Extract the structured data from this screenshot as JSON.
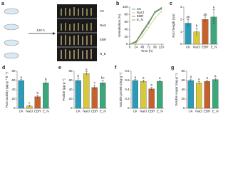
{
  "chart_data": [
    {
      "type": "diagram",
      "panel": "a",
      "arrow_label": "120 h",
      "labels": [
        "CK",
        "Nacl",
        "EBR",
        "N_E"
      ]
    },
    {
      "type": "line",
      "panel": "b",
      "x_label": "Time (h)",
      "y_label": "Germination (%)",
      "x": [
        0,
        24,
        48,
        72,
        96,
        120
      ],
      "xlim": [
        0,
        130
      ],
      "xticks": [
        0,
        24,
        48,
        72,
        96,
        120
      ],
      "ylim": [
        0,
        100
      ],
      "yticks": [
        0,
        20,
        40,
        60,
        80,
        100
      ],
      "legend": "top-left",
      "series": [
        {
          "name": "CK",
          "color": "#2b9cb8",
          "values": [
            0,
            5,
            30,
            55,
            85,
            95
          ]
        },
        {
          "name": "NaCl",
          "color": "#d8c83c",
          "values": [
            0,
            3,
            20,
            45,
            70,
            88
          ]
        },
        {
          "name": "EBR",
          "color": "#c4612e",
          "values": [
            0,
            8,
            35,
            60,
            88,
            98
          ]
        },
        {
          "name": "E_N",
          "color": "#3ba77b",
          "values": [
            0,
            6,
            32,
            58,
            86,
            97
          ]
        }
      ]
    },
    {
      "type": "bar",
      "panel": "c",
      "y_label": "Root length (cm)",
      "categories": [
        "CK",
        "NaCl",
        "EBR",
        "E_N"
      ],
      "colors": [
        "#2b9cb8",
        "#d8c83c",
        "#c4612e",
        "#3ba77b"
      ],
      "values": [
        1.7,
        1.0,
        2.0,
        2.2
      ],
      "errors": [
        0.3,
        0.3,
        0.2,
        0.6
      ],
      "letters": [
        "ab",
        "b",
        "ab",
        "a"
      ],
      "ylim": [
        0,
        3
      ],
      "yticks": [
        0,
        1,
        2,
        3
      ]
    },
    {
      "type": "bar",
      "panel": "d",
      "y_label": "Root activity (µg·g⁻¹·h⁻¹)",
      "categories": [
        "CK",
        "NaCl",
        "EBR",
        "E_N"
      ],
      "colors": [
        "#2b9cb8",
        "#d8c83c",
        "#c4612e",
        "#3ba77b"
      ],
      "values": [
        60,
        5,
        25,
        55
      ],
      "errors": [
        2,
        2,
        3,
        4
      ],
      "letters": [
        "a",
        "c",
        "b",
        "a"
      ],
      "ylim": [
        0,
        80
      ],
      "yticks": [
        0,
        20,
        40,
        60,
        80
      ]
    },
    {
      "type": "bar",
      "panel": "e",
      "y_label": "Proline (µg·g⁻¹)",
      "categories": [
        "CK",
        "NaCl",
        "EBR",
        "E_N"
      ],
      "colors": [
        "#2b9cb8",
        "#d8c83c",
        "#c4612e",
        "#3ba77b"
      ],
      "values": [
        60,
        75,
        45,
        55
      ],
      "errors": [
        5,
        4,
        5,
        6
      ],
      "letters": [
        "b",
        "a",
        "c",
        "bc"
      ],
      "ylim": [
        0,
        80
      ],
      "yticks": [
        0,
        20,
        40,
        60,
        80
      ]
    },
    {
      "type": "bar",
      "panel": "f",
      "y_label": "Soluble protein (mg·g⁻¹)",
      "categories": [
        "CK",
        "NaCl",
        "EBR",
        "E_N"
      ],
      "colors": [
        "#2b9cb8",
        "#d8c83c",
        "#c4612e",
        "#3ba77b"
      ],
      "values": [
        0.6,
        0.58,
        0.42,
        0.58
      ],
      "errors": [
        0.02,
        0.03,
        0.03,
        0.02
      ],
      "letters": [
        "a",
        "a",
        "b",
        "a"
      ],
      "ylim": [
        0,
        0.8
      ],
      "yticks": [
        0,
        0.2,
        0.4,
        0.6,
        0.8
      ]
    },
    {
      "type": "bar",
      "panel": "g",
      "y_label": "Soluble sugar (mg·g⁻¹)",
      "categories": [
        "CK",
        "NaCl",
        "EBR",
        "E_N"
      ],
      "colors": [
        "#2b9cb8",
        "#d8c83c",
        "#c4612e",
        "#3ba77b"
      ],
      "values": [
        60,
        55,
        58,
        62
      ],
      "errors": [
        3,
        3,
        3,
        3
      ],
      "letters": [
        "a",
        "a",
        "a",
        "a"
      ],
      "ylim": [
        0,
        80
      ],
      "yticks": [
        0,
        20,
        40,
        60,
        80
      ]
    }
  ]
}
